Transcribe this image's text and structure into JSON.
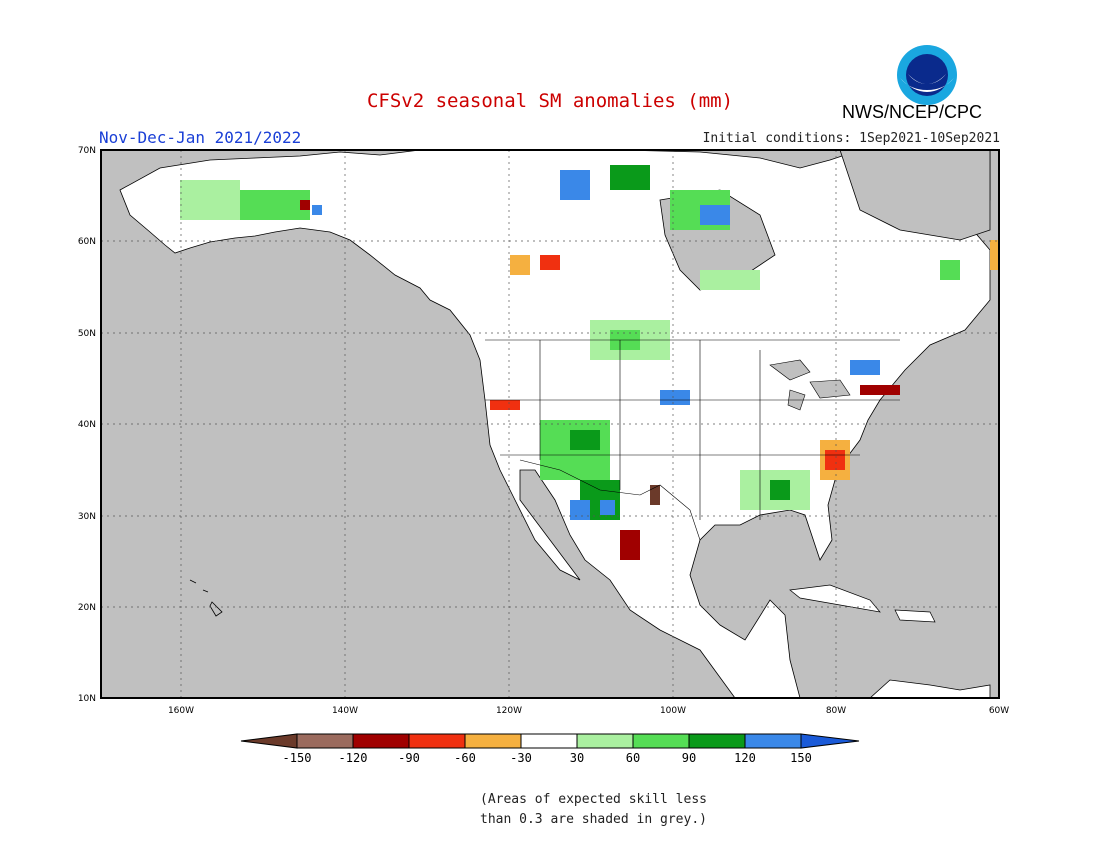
{
  "header": {
    "title": "CFSv2 seasonal SM anomalies (mm)",
    "season": "Nov-Dec-Jan 2021/2022",
    "initial_conditions": "Initial conditions: 1Sep2021-10Sep2021",
    "agency": "NWS/NCEP/CPC",
    "logo_text": "NOAA"
  },
  "map": {
    "lat_labels": [
      "70N",
      "60N",
      "50N",
      "40N",
      "30N",
      "20N",
      "10N"
    ],
    "lon_labels": [
      "160W",
      "140W",
      "120W",
      "100W",
      "80W",
      "60W"
    ],
    "colors": {
      "grey_mask": "#c0c0c0",
      "land_white": "#ffffff",
      "ocean": "#c0c0c0",
      "outline": "#000000"
    }
  },
  "colorbar": {
    "labels": [
      "-150",
      "-120",
      "-90",
      "-60",
      "-30",
      "30",
      "60",
      "90",
      "120",
      "150"
    ],
    "colors": [
      "#6b3a2a",
      "#9b6b5e",
      "#a00000",
      "#f03010",
      "#f5b040",
      "#ffffff",
      "#aaf0a0",
      "#55dd55",
      "#0a9a1a",
      "#3a88e8",
      "#1a5ad8"
    ]
  },
  "footnote": {
    "line1": "(Areas of expected skill less",
    "line2": "than 0.3 are shaded in grey.)"
  }
}
